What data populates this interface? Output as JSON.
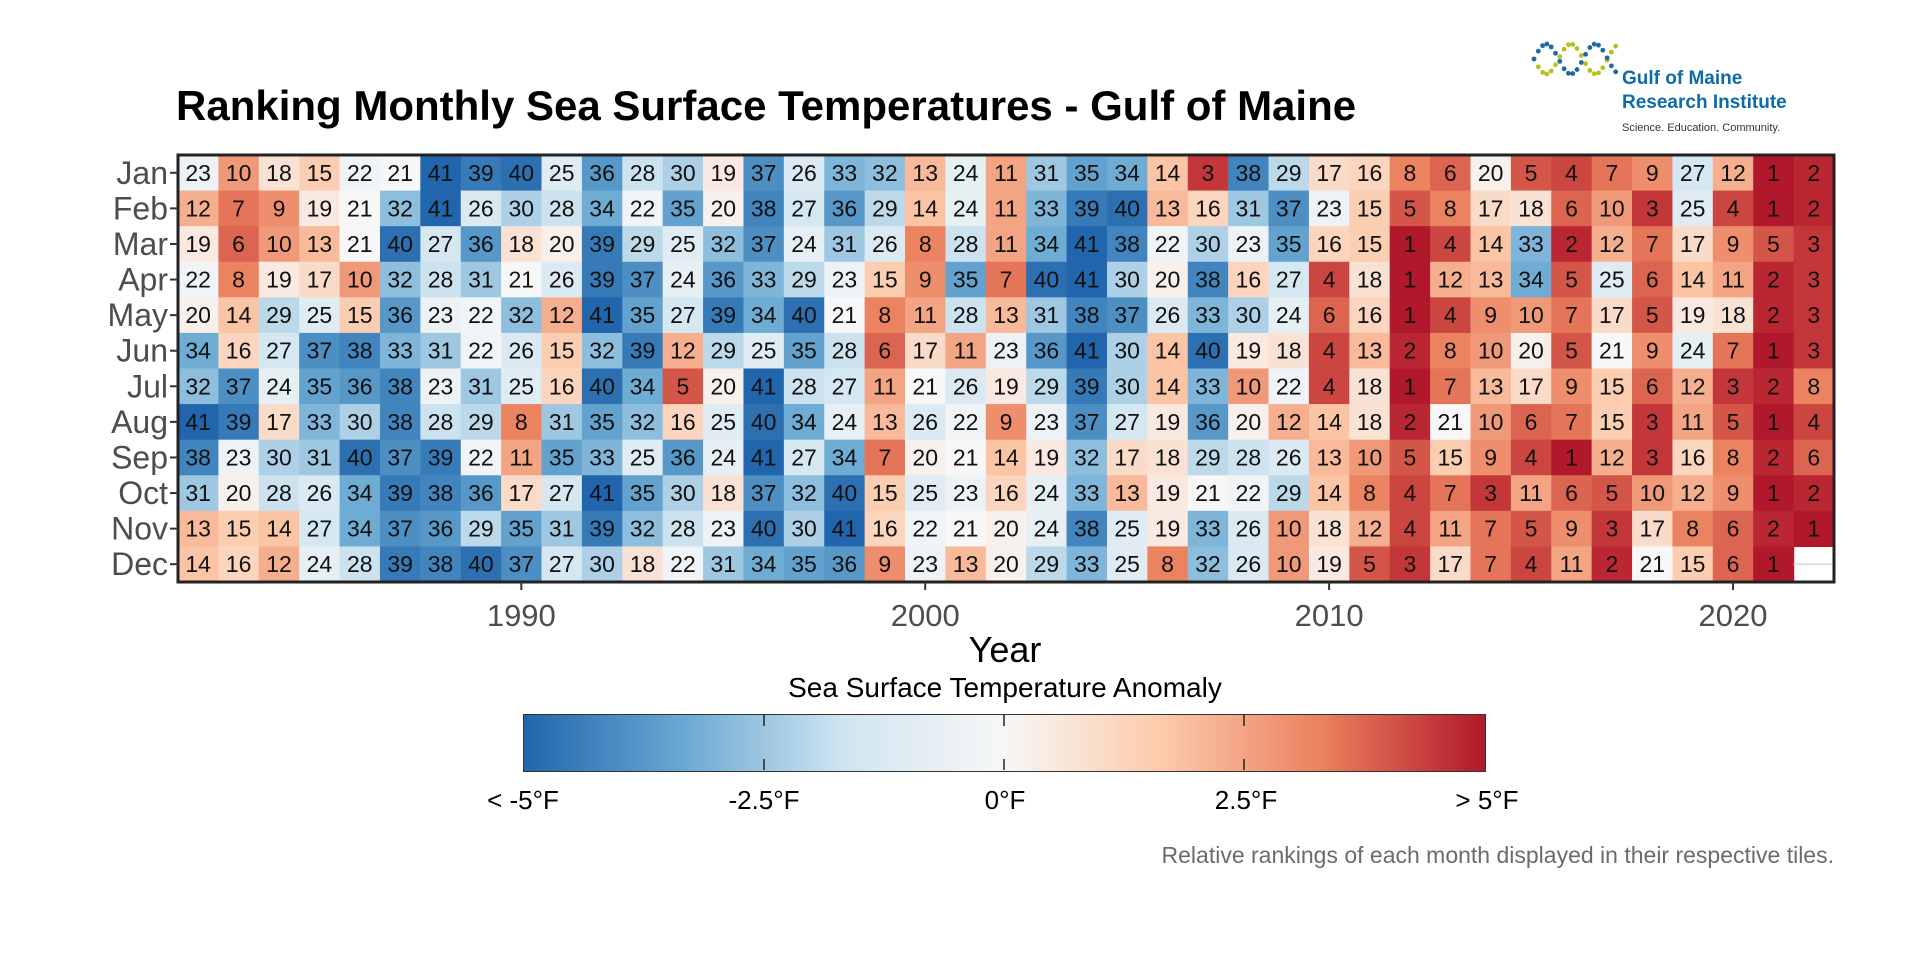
{
  "header": {
    "title": "Ranking Monthly Sea Surface Temperatures - Gulf of Maine"
  },
  "logo": {
    "line1": "Gulf of Maine",
    "line2": "Research Institute",
    "tagline": "Science. Education. Community.",
    "dot_colors": [
      "#b5c21b",
      "#1a6aa6"
    ]
  },
  "legend": {
    "title": "Sea Surface Temperature Anomaly",
    "labels": [
      "< -5°F",
      "-2.5°F",
      "0°F",
      "2.5°F",
      "> 5°F"
    ],
    "colors": [
      "#2166ac",
      "#6aa9d3",
      "#d1e5f0",
      "#f7f7f7",
      "#fcc9a9",
      "#ea7f5d",
      "#b2182b"
    ]
  },
  "caption": "Relative rankings of each month displayed in their respective tiles.",
  "chart_data": {
    "type": "heatmap",
    "title": "Ranking Monthly Sea Surface Temperatures - Gulf of Maine",
    "xlabel": "Year",
    "ylabel": "",
    "x": [
      1982,
      1983,
      1984,
      1985,
      1986,
      1987,
      1988,
      1989,
      1990,
      1991,
      1992,
      1993,
      1994,
      1995,
      1996,
      1997,
      1998,
      1999,
      2000,
      2001,
      2002,
      2003,
      2004,
      2005,
      2006,
      2007,
      2008,
      2009,
      2010,
      2011,
      2012,
      2013,
      2014,
      2015,
      2016,
      2017,
      2018,
      2019,
      2020,
      2021,
      2022
    ],
    "x_ticks": [
      1990,
      2000,
      2010,
      2020
    ],
    "xlim": [
      1981.5,
      2022.5
    ],
    "months": [
      "Jan",
      "Feb",
      "Mar",
      "Apr",
      "May",
      "Jun",
      "Jul",
      "Aug",
      "Sep",
      "Oct",
      "Nov",
      "Dec"
    ],
    "color_scale": {
      "min": -5,
      "max": 5,
      "unit": "°F"
    },
    "ranks": [
      [
        23,
        10,
        18,
        15,
        22,
        21,
        41,
        39,
        40,
        25,
        36,
        28,
        30,
        19,
        37,
        26,
        33,
        32,
        13,
        24,
        11,
        31,
        35,
        34,
        14,
        3,
        38,
        29,
        17,
        16,
        8,
        6,
        20,
        5,
        4,
        7,
        9,
        27,
        12,
        1,
        2
      ],
      [
        12,
        7,
        9,
        19,
        21,
        32,
        41,
        26,
        30,
        28,
        34,
        22,
        35,
        20,
        38,
        27,
        36,
        29,
        14,
        24,
        11,
        33,
        39,
        40,
        13,
        16,
        31,
        37,
        23,
        15,
        5,
        8,
        17,
        18,
        6,
        10,
        3,
        25,
        4,
        1,
        2
      ],
      [
        19,
        6,
        10,
        13,
        21,
        40,
        27,
        36,
        18,
        20,
        39,
        29,
        25,
        32,
        37,
        24,
        31,
        26,
        8,
        28,
        11,
        34,
        41,
        38,
        22,
        30,
        23,
        35,
        16,
        15,
        1,
        4,
        14,
        33,
        2,
        12,
        7,
        17,
        9,
        5,
        3
      ],
      [
        22,
        8,
        19,
        17,
        10,
        32,
        28,
        31,
        21,
        26,
        39,
        37,
        24,
        36,
        33,
        29,
        23,
        15,
        9,
        35,
        7,
        40,
        41,
        30,
        20,
        38,
        16,
        27,
        4,
        18,
        1,
        12,
        13,
        34,
        5,
        25,
        6,
        14,
        11,
        2,
        3
      ],
      [
        20,
        14,
        29,
        25,
        15,
        36,
        23,
        22,
        32,
        12,
        41,
        35,
        27,
        39,
        34,
        40,
        21,
        8,
        11,
        28,
        13,
        31,
        38,
        37,
        26,
        33,
        30,
        24,
        6,
        16,
        1,
        4,
        9,
        10,
        7,
        17,
        5,
        19,
        18,
        2,
        3
      ],
      [
        34,
        16,
        27,
        37,
        38,
        33,
        31,
        22,
        26,
        15,
        32,
        39,
        12,
        29,
        25,
        35,
        28,
        6,
        17,
        11,
        23,
        36,
        41,
        30,
        14,
        40,
        19,
        18,
        4,
        13,
        2,
        8,
        10,
        20,
        5,
        21,
        9,
        24,
        7,
        1,
        3
      ],
      [
        32,
        37,
        24,
        35,
        36,
        38,
        23,
        31,
        25,
        16,
        40,
        34,
        5,
        20,
        41,
        28,
        27,
        11,
        21,
        26,
        19,
        29,
        39,
        30,
        14,
        33,
        10,
        22,
        4,
        18,
        1,
        7,
        13,
        17,
        9,
        15,
        6,
        12,
        3,
        2,
        8
      ],
      [
        41,
        39,
        17,
        33,
        30,
        38,
        28,
        29,
        8,
        31,
        35,
        32,
        16,
        25,
        40,
        34,
        24,
        13,
        26,
        22,
        9,
        23,
        37,
        27,
        19,
        36,
        20,
        12,
        14,
        18,
        2,
        21,
        10,
        6,
        7,
        15,
        3,
        11,
        5,
        1,
        4
      ],
      [
        38,
        23,
        30,
        31,
        40,
        37,
        39,
        22,
        11,
        35,
        33,
        25,
        36,
        24,
        41,
        27,
        34,
        7,
        20,
        21,
        14,
        19,
        32,
        17,
        18,
        29,
        28,
        26,
        13,
        10,
        5,
        15,
        9,
        4,
        1,
        12,
        3,
        16,
        8,
        2,
        6
      ],
      [
        31,
        20,
        28,
        26,
        34,
        39,
        38,
        36,
        17,
        27,
        41,
        35,
        30,
        18,
        37,
        32,
        40,
        15,
        25,
        23,
        16,
        24,
        33,
        13,
        19,
        21,
        22,
        29,
        14,
        8,
        4,
        7,
        3,
        11,
        6,
        5,
        10,
        12,
        9,
        1,
        2
      ],
      [
        13,
        15,
        14,
        27,
        34,
        37,
        36,
        29,
        35,
        31,
        39,
        32,
        28,
        23,
        40,
        30,
        41,
        16,
        22,
        21,
        20,
        24,
        38,
        25,
        19,
        33,
        26,
        10,
        18,
        12,
        4,
        11,
        7,
        5,
        9,
        3,
        17,
        8,
        6,
        2,
        1
      ],
      [
        14,
        16,
        12,
        24,
        28,
        39,
        38,
        40,
        37,
        27,
        30,
        18,
        22,
        31,
        34,
        35,
        36,
        9,
        23,
        13,
        20,
        29,
        33,
        25,
        8,
        32,
        26,
        10,
        19,
        5,
        3,
        17,
        7,
        4,
        11,
        2,
        21,
        15,
        6,
        1,
        null
      ]
    ]
  }
}
